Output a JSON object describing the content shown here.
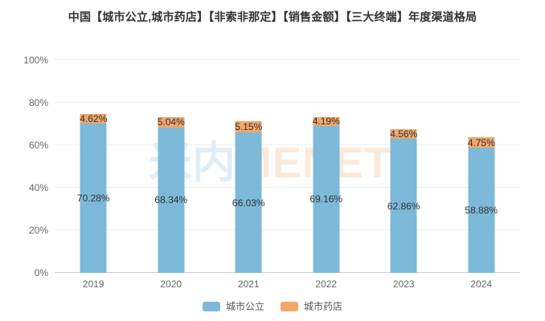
{
  "title": "中国【城市公立,城市药店】【非索非那定】【销售金额】【三大终端】年度渠道格局",
  "watermark": {
    "cn_text": "米内",
    "en_text": "MENET"
  },
  "colors": {
    "series_public_blue": "#7db9d8",
    "series_pharmacy_orange": "#f0a76c",
    "grid_line": "#f0f0f0",
    "axis_line": "#cccccc",
    "axis_text": "#666666",
    "data_label_text": "#333333",
    "watermark_blue": "#e1edf6",
    "watermark_orange": "#fbeadb"
  },
  "chart_data": {
    "type": "bar",
    "stacked": true,
    "title": "中国【城市公立,城市药店】【非索非那定】【销售金额】【三大终端】年度渠道格局",
    "categories": [
      "2019",
      "2020",
      "2021",
      "2022",
      "2023",
      "2024"
    ],
    "series": [
      {
        "name": "城市公立",
        "color": "#7db9d8",
        "values": [
          70.28,
          68.34,
          66.03,
          69.16,
          62.86,
          58.88
        ],
        "labels": [
          "70.28%",
          "68.34%",
          "66.03%",
          "69.16%",
          "62.86%",
          "58.88%"
        ],
        "label_position": "inside-center"
      },
      {
        "name": "城市药店",
        "color": "#f0a76c",
        "values": [
          4.62,
          5.04,
          5.15,
          4.19,
          4.56,
          4.75
        ],
        "labels": [
          "4.62%",
          "5.04%",
          "5.15%",
          "4.19%",
          "4.56%",
          "4.75%"
        ],
        "label_position": "inside-center"
      }
    ],
    "y_ticks": [
      "0%",
      "20%",
      "40%",
      "60%",
      "80%",
      "100%"
    ],
    "ylim": [
      0,
      100
    ],
    "grid": true,
    "legend_position": "bottom"
  },
  "legend": {
    "items": [
      {
        "label": "城市公立",
        "color": "#7db9d8"
      },
      {
        "label": "城市药店",
        "color": "#f0a76c"
      }
    ]
  }
}
